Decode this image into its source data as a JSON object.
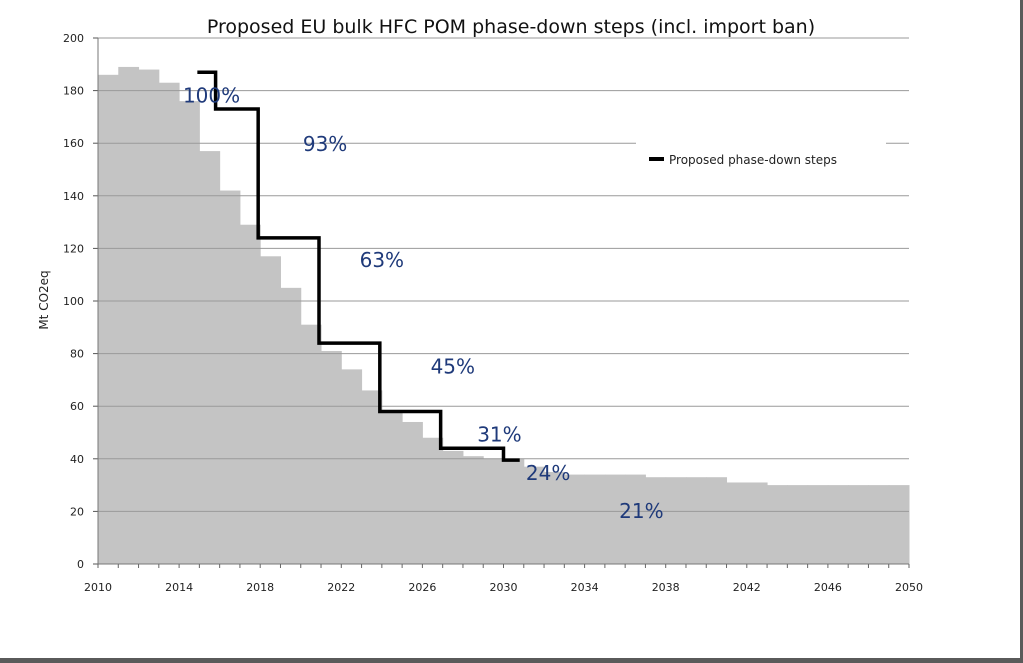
{
  "chart_data": {
    "type": "area",
    "title": "Proposed EU bulk HFC POM phase-down steps (incl. import ban)",
    "ylabel": "Mt CO2eq",
    "xlabel": "",
    "xlim": [
      2010,
      2050
    ],
    "ylim": [
      0,
      200
    ],
    "x_ticks": [
      "2010",
      "2014",
      "2018",
      "2022",
      "2026",
      "2030",
      "2034",
      "2038",
      "2042",
      "2046",
      "2050"
    ],
    "y_ticks": [
      "0",
      "20",
      "40",
      "60",
      "80",
      "100",
      "120",
      "140",
      "160",
      "180",
      "200"
    ],
    "grid": true,
    "legend_position": "right",
    "series": [
      {
        "type": "area",
        "color": "#c4c4c4",
        "x": [
          2010,
          2011,
          2012,
          2013,
          2014,
          2015,
          2016,
          2017,
          2018,
          2019,
          2020,
          2021,
          2022,
          2023,
          2024,
          2025,
          2026,
          2027,
          2028,
          2029,
          2030,
          2031,
          2032,
          2033,
          2034,
          2035,
          2036,
          2037,
          2038,
          2039,
          2040,
          2041,
          2042,
          2043,
          2044,
          2045,
          2046,
          2047,
          2048,
          2049
        ],
        "values": [
          186,
          189,
          188,
          183,
          176,
          157,
          142,
          129,
          117,
          105,
          91,
          81,
          74,
          66,
          58,
          54,
          48,
          43,
          41,
          40,
          40,
          37,
          35,
          34,
          34,
          34,
          34,
          33,
          33,
          33,
          33,
          31,
          31,
          30,
          30,
          30,
          30,
          30,
          30,
          30
        ]
      },
      {
        "name": "Proposed phase-down steps",
        "type": "step",
        "color": "#000000",
        "x": [
          2014.9,
          2015.8,
          2015.8,
          2017.9,
          2017.9,
          2020.9,
          2020.9,
          2023.9,
          2023.9,
          2026.9,
          2026.9,
          2030.0,
          2030.0,
          2030.8
        ],
        "values": [
          187,
          187,
          173,
          173,
          124,
          124,
          84,
          84,
          58,
          58,
          44,
          44,
          39.5,
          39.5
        ]
      }
    ],
    "annotations": [
      {
        "text": "100%",
        "x": 2015.6,
        "y": 175.5
      },
      {
        "text": "93%",
        "x": 2021.2,
        "y": 157
      },
      {
        "text": "63%",
        "x": 2024.0,
        "y": 113
      },
      {
        "text": "45%",
        "x": 2027.5,
        "y": 72.5
      },
      {
        "text": "31%",
        "x": 2029.8,
        "y": 46.5
      },
      {
        "text": "24%",
        "x": 2032.2,
        "y": 32
      },
      {
        "text": "21%",
        "x": 2036.8,
        "y": 17.5
      }
    ]
  }
}
